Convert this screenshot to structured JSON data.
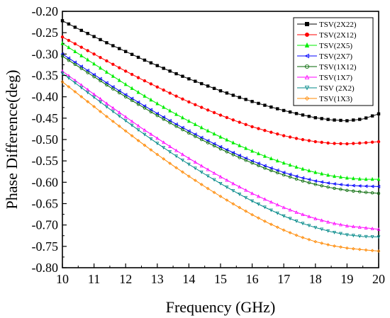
{
  "chart_data": {
    "type": "line",
    "title": "",
    "xlabel": "Frequency (GHz)",
    "ylabel": "Phase Difference(deg)",
    "xlim": [
      10,
      20
    ],
    "ylim": [
      -0.8,
      -0.2
    ],
    "x_ticks": [
      "10",
      "11",
      "12",
      "13",
      "14",
      "15",
      "16",
      "17",
      "18",
      "19",
      "20"
    ],
    "y_ticks": [
      "-0.20",
      "-0.25",
      "-0.30",
      "-0.35",
      "-0.40",
      "-0.45",
      "-0.50",
      "-0.55",
      "-0.60",
      "-0.65",
      "-0.70",
      "-0.75",
      "-0.80"
    ],
    "grid": false,
    "legend_position": "top-right",
    "x": [
      10,
      10.5,
      11,
      11.5,
      12,
      12.5,
      13,
      13.5,
      14,
      14.5,
      15,
      15.5,
      16,
      16.5,
      17,
      17.5,
      18,
      18.5,
      19,
      19.5,
      20
    ],
    "series": [
      {
        "name": "TSV(2X22)",
        "color": "#000000",
        "marker": "square",
        "values": [
          -0.222,
          -0.241,
          -0.259,
          -0.277,
          -0.294,
          -0.311,
          -0.327,
          -0.343,
          -0.358,
          -0.372,
          -0.386,
          -0.399,
          -0.411,
          -0.422,
          -0.432,
          -0.441,
          -0.449,
          -0.454,
          -0.456,
          -0.452,
          -0.44
        ]
      },
      {
        "name": "TSV(2X12)",
        "color": "#ff0000",
        "marker": "circle",
        "values": [
          -0.26,
          -0.28,
          -0.3,
          -0.32,
          -0.34,
          -0.359,
          -0.377,
          -0.395,
          -0.412,
          -0.428,
          -0.443,
          -0.457,
          -0.47,
          -0.481,
          -0.491,
          -0.499,
          -0.505,
          -0.509,
          -0.51,
          -0.508,
          -0.505
        ]
      },
      {
        "name": "TSV(2X5)",
        "color": "#00ee00",
        "marker": "triangle",
        "values": [
          -0.275,
          -0.299,
          -0.323,
          -0.347,
          -0.371,
          -0.394,
          -0.416,
          -0.437,
          -0.457,
          -0.476,
          -0.494,
          -0.511,
          -0.527,
          -0.542,
          -0.555,
          -0.567,
          -0.577,
          -0.585,
          -0.59,
          -0.593,
          -0.593
        ]
      },
      {
        "name": "TSV(2X7)",
        "color": "#0000ff",
        "marker": "open-triangle-left",
        "values": [
          -0.3,
          -0.324,
          -0.348,
          -0.372,
          -0.395,
          -0.417,
          -0.439,
          -0.46,
          -0.48,
          -0.499,
          -0.517,
          -0.534,
          -0.55,
          -0.564,
          -0.577,
          -0.588,
          -0.597,
          -0.603,
          -0.607,
          -0.609,
          -0.61
        ]
      },
      {
        "name": "TSV(1X12)",
        "color": "#006600",
        "marker": "open-circle",
        "values": [
          -0.305,
          -0.329,
          -0.353,
          -0.377,
          -0.4,
          -0.422,
          -0.444,
          -0.465,
          -0.485,
          -0.504,
          -0.522,
          -0.539,
          -0.555,
          -0.57,
          -0.583,
          -0.595,
          -0.605,
          -0.613,
          -0.619,
          -0.623,
          -0.626
        ]
      },
      {
        "name": "TSV(1X7)",
        "color": "#ff00ff",
        "marker": "open-triangle-up",
        "values": [
          -0.34,
          -0.367,
          -0.394,
          -0.421,
          -0.447,
          -0.473,
          -0.497,
          -0.521,
          -0.544,
          -0.566,
          -0.587,
          -0.607,
          -0.626,
          -0.643,
          -0.659,
          -0.673,
          -0.685,
          -0.695,
          -0.702,
          -0.706,
          -0.71
        ]
      },
      {
        "name": "TSV (2X2)",
        "color": "#008888",
        "marker": "open-triangle-down",
        "values": [
          -0.345,
          -0.373,
          -0.401,
          -0.429,
          -0.456,
          -0.483,
          -0.509,
          -0.534,
          -0.558,
          -0.581,
          -0.603,
          -0.624,
          -0.644,
          -0.662,
          -0.679,
          -0.694,
          -0.706,
          -0.716,
          -0.723,
          -0.727,
          -0.728
        ]
      },
      {
        "name": "TSV(1X3)",
        "color": "#ff8800",
        "marker": "open-diamond",
        "values": [
          -0.365,
          -0.394,
          -0.423,
          -0.452,
          -0.48,
          -0.508,
          -0.535,
          -0.561,
          -0.586,
          -0.61,
          -0.633,
          -0.655,
          -0.676,
          -0.695,
          -0.712,
          -0.727,
          -0.739,
          -0.748,
          -0.754,
          -0.758,
          -0.761
        ]
      }
    ]
  }
}
